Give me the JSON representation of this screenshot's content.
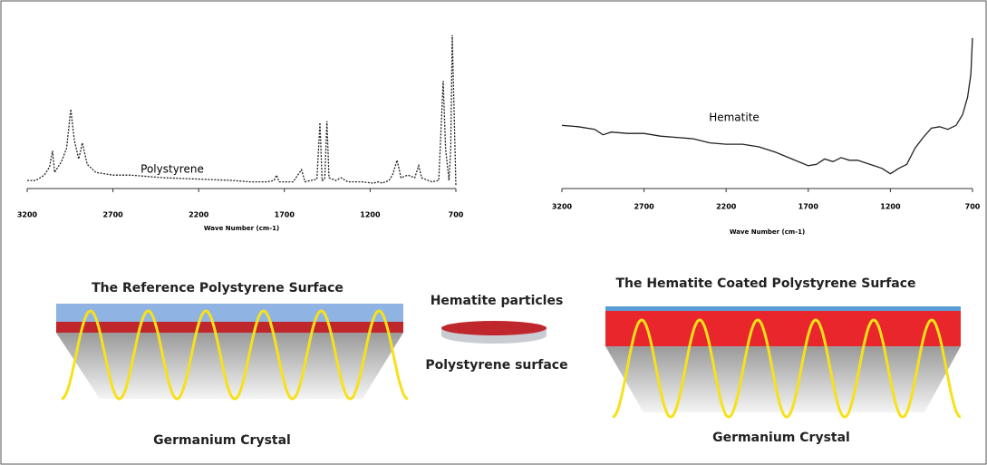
{
  "chart_data": [
    {
      "type": "line",
      "xlabel": "Wave Number (cm-1)",
      "xlim": [
        3200,
        700
      ],
      "ylim": [
        0,
        1.2
      ],
      "xticks": [
        3200,
        2700,
        2200,
        1700,
        1200,
        700
      ],
      "series": [
        {
          "name": "Polystyrene",
          "color": "#222222",
          "line_style": "dashed",
          "x": [
            3200,
            3150,
            3100,
            3070,
            3052,
            3040,
            3000,
            2970,
            2946,
            2925,
            2900,
            2878,
            2850,
            2800,
            2700,
            2600,
            2400,
            2200,
            2000,
            1900,
            1800,
            1760,
            1746,
            1730,
            1650,
            1600,
            1580,
            1510,
            1493,
            1480,
            1465,
            1452,
            1440,
            1400,
            1370,
            1330,
            1250,
            1180,
            1155,
            1130,
            1090,
            1070,
            1043,
            1020,
            980,
            940,
            917,
            900,
            840,
            800,
            774,
            760,
            740,
            730,
            721,
            700
          ],
          "values": [
            0.06,
            0.06,
            0.1,
            0.16,
            0.28,
            0.12,
            0.2,
            0.3,
            0.59,
            0.36,
            0.22,
            0.34,
            0.18,
            0.12,
            0.1,
            0.1,
            0.08,
            0.07,
            0.06,
            0.05,
            0.05,
            0.06,
            0.1,
            0.05,
            0.05,
            0.14,
            0.05,
            0.07,
            0.49,
            0.06,
            0.07,
            0.5,
            0.08,
            0.06,
            0.08,
            0.05,
            0.05,
            0.04,
            0.05,
            0.04,
            0.06,
            0.1,
            0.21,
            0.08,
            0.1,
            0.08,
            0.17,
            0.08,
            0.05,
            0.06,
            0.8,
            0.3,
            0.06,
            0.3,
            1.14,
            0.02
          ]
        }
      ]
    },
    {
      "type": "line",
      "xlabel": "Wave Number (cm-1)",
      "xlim": [
        3200,
        700
      ],
      "ylim": [
        0,
        1.2
      ],
      "xticks": [
        3200,
        2700,
        2200,
        1700,
        1200,
        700
      ],
      "series": [
        {
          "name": "Hematite",
          "color": "#222222",
          "line_style": "solid",
          "x": [
            3200,
            3100,
            3000,
            2950,
            2900,
            2800,
            2700,
            2600,
            2500,
            2400,
            2300,
            2200,
            2100,
            2000,
            1900,
            1800,
            1700,
            1650,
            1600,
            1550,
            1500,
            1450,
            1400,
            1350,
            1300,
            1250,
            1200,
            1150,
            1100,
            1050,
            1000,
            950,
            900,
            850,
            800,
            760,
            730,
            710,
            700
          ],
          "values": [
            0.47,
            0.46,
            0.44,
            0.4,
            0.42,
            0.41,
            0.41,
            0.39,
            0.38,
            0.37,
            0.34,
            0.33,
            0.33,
            0.31,
            0.27,
            0.22,
            0.17,
            0.18,
            0.22,
            0.2,
            0.23,
            0.21,
            0.21,
            0.19,
            0.17,
            0.15,
            0.11,
            0.15,
            0.18,
            0.3,
            0.38,
            0.45,
            0.46,
            0.44,
            0.47,
            0.55,
            0.68,
            0.85,
            1.12
          ]
        }
      ]
    }
  ],
  "diagram": {
    "left_title": "The Reference Polystyrene Surface",
    "left_label": "Germanium Crystal",
    "middle_top": "Hematite particles",
    "middle_bottom": "Polystyrene surface",
    "right_title": "The Hematite Coated Polystyrene Surface",
    "right_label": "Germanium Crystal"
  }
}
